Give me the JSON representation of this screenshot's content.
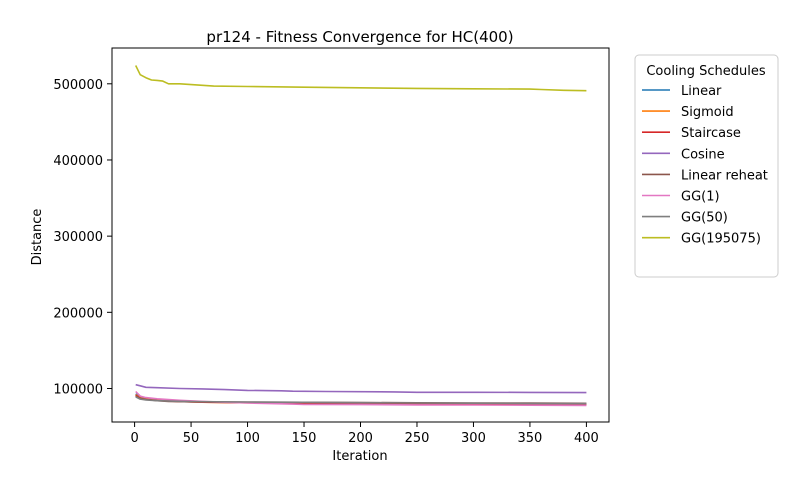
{
  "chart_data": {
    "type": "line",
    "title": "pr124 - Fitness Convergence for HC(400)",
    "xlabel": "Iteration",
    "ylabel": "Distance",
    "xlim": [
      -20,
      420
    ],
    "ylim": [
      56000,
      547000
    ],
    "xticks": [
      0,
      50,
      100,
      150,
      200,
      250,
      300,
      350,
      400
    ],
    "yticks": [
      100000,
      200000,
      300000,
      400000,
      500000
    ],
    "grid": false,
    "legend": {
      "title": "Cooling Schedules",
      "placement": "outside-right"
    },
    "series": [
      {
        "name": "Linear",
        "color": "#1f77b4",
        "x": [
          1,
          5,
          10,
          20,
          40,
          60,
          100,
          150,
          200,
          250,
          300,
          350,
          400
        ],
        "y": [
          93000,
          88000,
          86500,
          85000,
          83500,
          82500,
          81500,
          81000,
          80500,
          80000,
          79500,
          79000,
          79000
        ]
      },
      {
        "name": "Sigmoid",
        "color": "#ff7f0e",
        "x": [
          1,
          5,
          10,
          20,
          40,
          60,
          100,
          150,
          200,
          250,
          300,
          350,
          400
        ],
        "y": [
          92000,
          87500,
          86000,
          84500,
          83000,
          82000,
          81200,
          80700,
          80300,
          79800,
          79400,
          79000,
          78800
        ]
      },
      {
        "name": "Staircase",
        "color": "#d62728",
        "x": [
          1,
          5,
          10,
          20,
          40,
          60,
          100,
          150,
          200,
          250,
          300,
          350,
          400
        ],
        "y": [
          91000,
          87000,
          85500,
          84200,
          82800,
          82000,
          81300,
          80800,
          80400,
          80000,
          79600,
          79200,
          79000
        ]
      },
      {
        "name": "Cosine",
        "color": "#9467bd",
        "x": [
          1,
          5,
          10,
          20,
          40,
          60,
          80,
          100,
          130,
          140,
          170,
          230,
          250,
          300,
          350,
          400
        ],
        "y": [
          105000,
          103500,
          101500,
          101000,
          100000,
          99500,
          98500,
          97500,
          97000,
          96500,
          96000,
          95500,
          95000,
          95000,
          94800,
          94600
        ]
      },
      {
        "name": "Linear reheat",
        "color": "#8c564b",
        "x": [
          1,
          5,
          10,
          20,
          30,
          50,
          80,
          100,
          150,
          200,
          250,
          300,
          350,
          400
        ],
        "y": [
          90000,
          86500,
          85500,
          84000,
          83000,
          82500,
          82200,
          82000,
          81800,
          81600,
          81200,
          81000,
          80800,
          80600
        ]
      },
      {
        "name": "GG(1)",
        "color": "#e377c2",
        "x": [
          1,
          5,
          10,
          20,
          40,
          60,
          100,
          140,
          150,
          200,
          250,
          300,
          350,
          400
        ],
        "y": [
          96000,
          90000,
          88000,
          86500,
          84500,
          83000,
          81000,
          79500,
          79000,
          78800,
          78500,
          78300,
          78000,
          77800
        ]
      },
      {
        "name": "GG(50)",
        "color": "#7f7f7f",
        "x": [
          1,
          5,
          10,
          20,
          40,
          60,
          100,
          150,
          200,
          250,
          300,
          350,
          400
        ],
        "y": [
          89000,
          86000,
          85000,
          84000,
          83200,
          82700,
          82200,
          81800,
          81400,
          81000,
          80700,
          80400,
          80200
        ]
      },
      {
        "name": "GG(195075)",
        "color": "#bcbd22",
        "x": [
          1,
          5,
          10,
          15,
          20,
          25,
          30,
          40,
          50,
          60,
          70,
          100,
          150,
          180,
          250,
          300,
          350,
          360,
          380,
          400
        ],
        "y": [
          524000,
          512000,
          508000,
          505000,
          504500,
          503500,
          500000,
          500000,
          499000,
          498000,
          497000,
          496500,
          495500,
          495000,
          494000,
          493500,
          493000,
          492500,
          491500,
          491000
        ]
      }
    ]
  }
}
